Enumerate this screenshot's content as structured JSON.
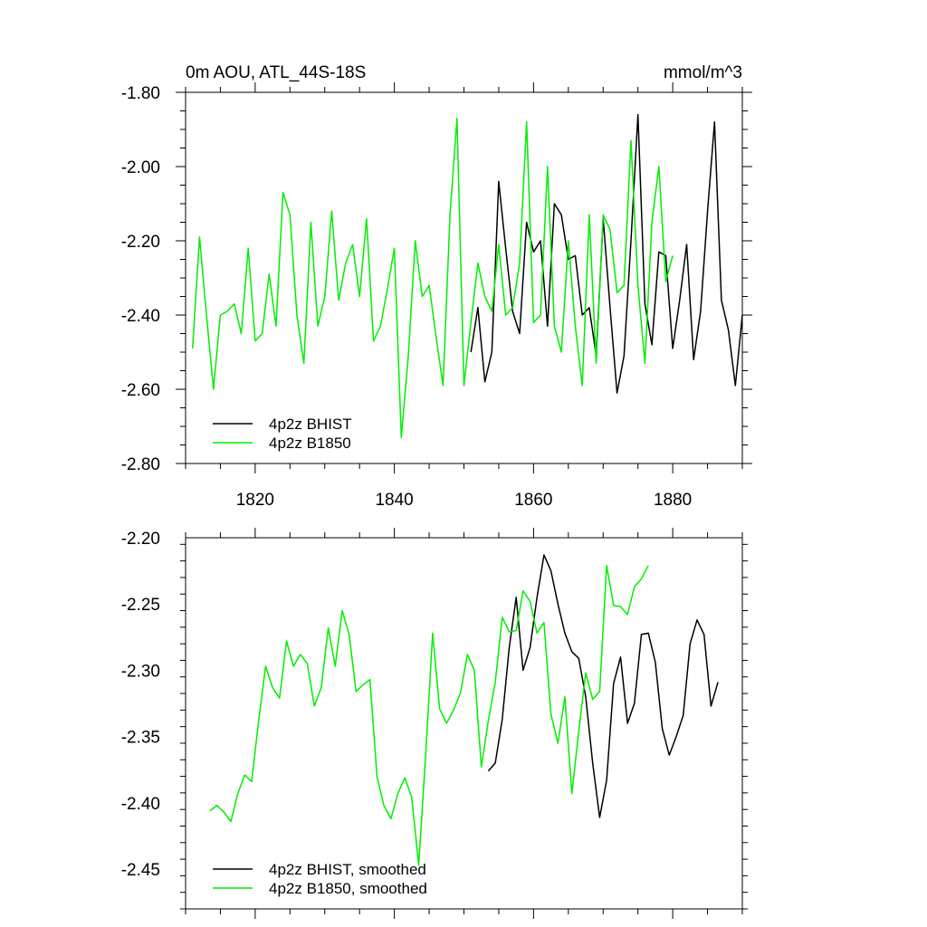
{
  "colors": {
    "bhist": "#000000",
    "b1850": "#00ee00",
    "axis": "#000000",
    "background": "#ffffff"
  },
  "chart_data": [
    {
      "type": "line",
      "title": "0m AOU, ATL_44S-18S",
      "units": "mmol/m^3",
      "xlim": [
        1810,
        1890
      ],
      "ylim": [
        -2.8,
        -1.8
      ],
      "x_ticks": [
        1820,
        1840,
        1860,
        1880
      ],
      "x_tick_labels": [
        "1820",
        "1840",
        "1860",
        "1880"
      ],
      "y_ticks": [
        -2.8,
        -2.6,
        -2.4,
        -2.2,
        -2.0,
        -1.8
      ],
      "y_tick_labels": [
        "-2.80",
        "-2.60",
        "-2.40",
        "-2.20",
        "-2.00",
        "-1.80"
      ],
      "grid": false,
      "legend_position": "bottom-left",
      "series": [
        {
          "name": "4p2z BHIST",
          "color_key": "bhist",
          "x_start": 1851,
          "values": [
            -2.5,
            -2.38,
            -2.58,
            -2.5,
            -2.04,
            -2.22,
            -2.39,
            -2.45,
            -2.15,
            -2.23,
            -2.2,
            -2.43,
            -2.1,
            -2.13,
            -2.25,
            -2.24,
            -2.4,
            -2.38,
            -2.51,
            -2.14,
            -2.38,
            -2.61,
            -2.51,
            -2.2,
            -1.86,
            -2.37,
            -2.48,
            -2.23,
            -2.24,
            -2.49,
            -2.36,
            -2.21,
            -2.52,
            -2.39,
            -2.12,
            -1.88,
            -2.36,
            -2.44,
            -2.59,
            -2.4
          ]
        },
        {
          "name": "4p2z B1850",
          "color_key": "b1850",
          "x_start": 1811,
          "values": [
            -2.49,
            -2.19,
            -2.4,
            -2.6,
            -2.4,
            -2.39,
            -2.37,
            -2.45,
            -2.22,
            -2.47,
            -2.45,
            -2.29,
            -2.43,
            -2.07,
            -2.13,
            -2.4,
            -2.53,
            -2.15,
            -2.43,
            -2.35,
            -2.12,
            -2.36,
            -2.26,
            -2.21,
            -2.35,
            -2.14,
            -2.47,
            -2.43,
            -2.33,
            -2.22,
            -2.73,
            -2.51,
            -2.2,
            -2.35,
            -2.32,
            -2.46,
            -2.59,
            -2.13,
            -1.87,
            -2.59,
            -2.42,
            -2.26,
            -2.35,
            -2.39,
            -2.21,
            -2.4,
            -2.38,
            -2.26,
            -1.88,
            -2.42,
            -2.4,
            -2.0,
            -2.43,
            -2.5,
            -2.2,
            -2.43,
            -2.59,
            -2.13,
            -2.53,
            -2.13,
            -2.17,
            -2.34,
            -2.32,
            -1.93,
            -2.32,
            -2.53,
            -2.15,
            -2.0,
            -2.31,
            -2.24
          ]
        }
      ]
    },
    {
      "type": "line",
      "xlim": [
        1810,
        1890
      ],
      "ylim": [
        -2.48,
        -2.2
      ],
      "x_ticks": [
        1820,
        1840,
        1860,
        1880
      ],
      "y_ticks": [
        -2.45,
        -2.4,
        -2.35,
        -2.3,
        -2.25,
        -2.2
      ],
      "y_tick_labels": [
        "-2.45",
        "-2.40",
        "-2.35",
        "-2.30",
        "-2.25",
        "-2.20"
      ],
      "grid": false,
      "legend_position": "bottom-left",
      "series": [
        {
          "name": "4p2z BHIST, smoothed",
          "color_key": "bhist",
          "x_start": 1853.5,
          "values": [
            -2.376,
            -2.37,
            -2.337,
            -2.283,
            -2.245,
            -2.3,
            -2.283,
            -2.245,
            -2.213,
            -2.225,
            -2.25,
            -2.272,
            -2.286,
            -2.291,
            -2.32,
            -2.37,
            -2.411,
            -2.383,
            -2.31,
            -2.29,
            -2.34,
            -2.325,
            -2.273,
            -2.272,
            -2.294,
            -2.344,
            -2.364,
            -2.35,
            -2.334,
            -2.28,
            -2.262,
            -2.273,
            -2.327,
            -2.309
          ]
        },
        {
          "name": "4p2z B1850, smoothed",
          "color_key": "b1850",
          "x_start": 1813.5,
          "values": [
            -2.406,
            -2.402,
            -2.407,
            -2.414,
            -2.393,
            -2.379,
            -2.384,
            -2.338,
            -2.297,
            -2.313,
            -2.321,
            -2.278,
            -2.297,
            -2.288,
            -2.295,
            -2.327,
            -2.313,
            -2.268,
            -2.297,
            -2.255,
            -2.273,
            -2.316,
            -2.311,
            -2.307,
            -2.38,
            -2.402,
            -2.412,
            -2.393,
            -2.381,
            -2.396,
            -2.447,
            -2.364,
            -2.272,
            -2.329,
            -2.34,
            -2.33,
            -2.317,
            -2.288,
            -2.3,
            -2.373,
            -2.338,
            -2.309,
            -2.26,
            -2.271,
            -2.27,
            -2.24,
            -2.248,
            -2.272,
            -2.264,
            -2.333,
            -2.355,
            -2.32,
            -2.393,
            -2.346,
            -2.302,
            -2.322,
            -2.316,
            -2.221,
            -2.251,
            -2.252,
            -2.258,
            -2.237,
            -2.231,
            -2.221
          ]
        }
      ]
    }
  ]
}
